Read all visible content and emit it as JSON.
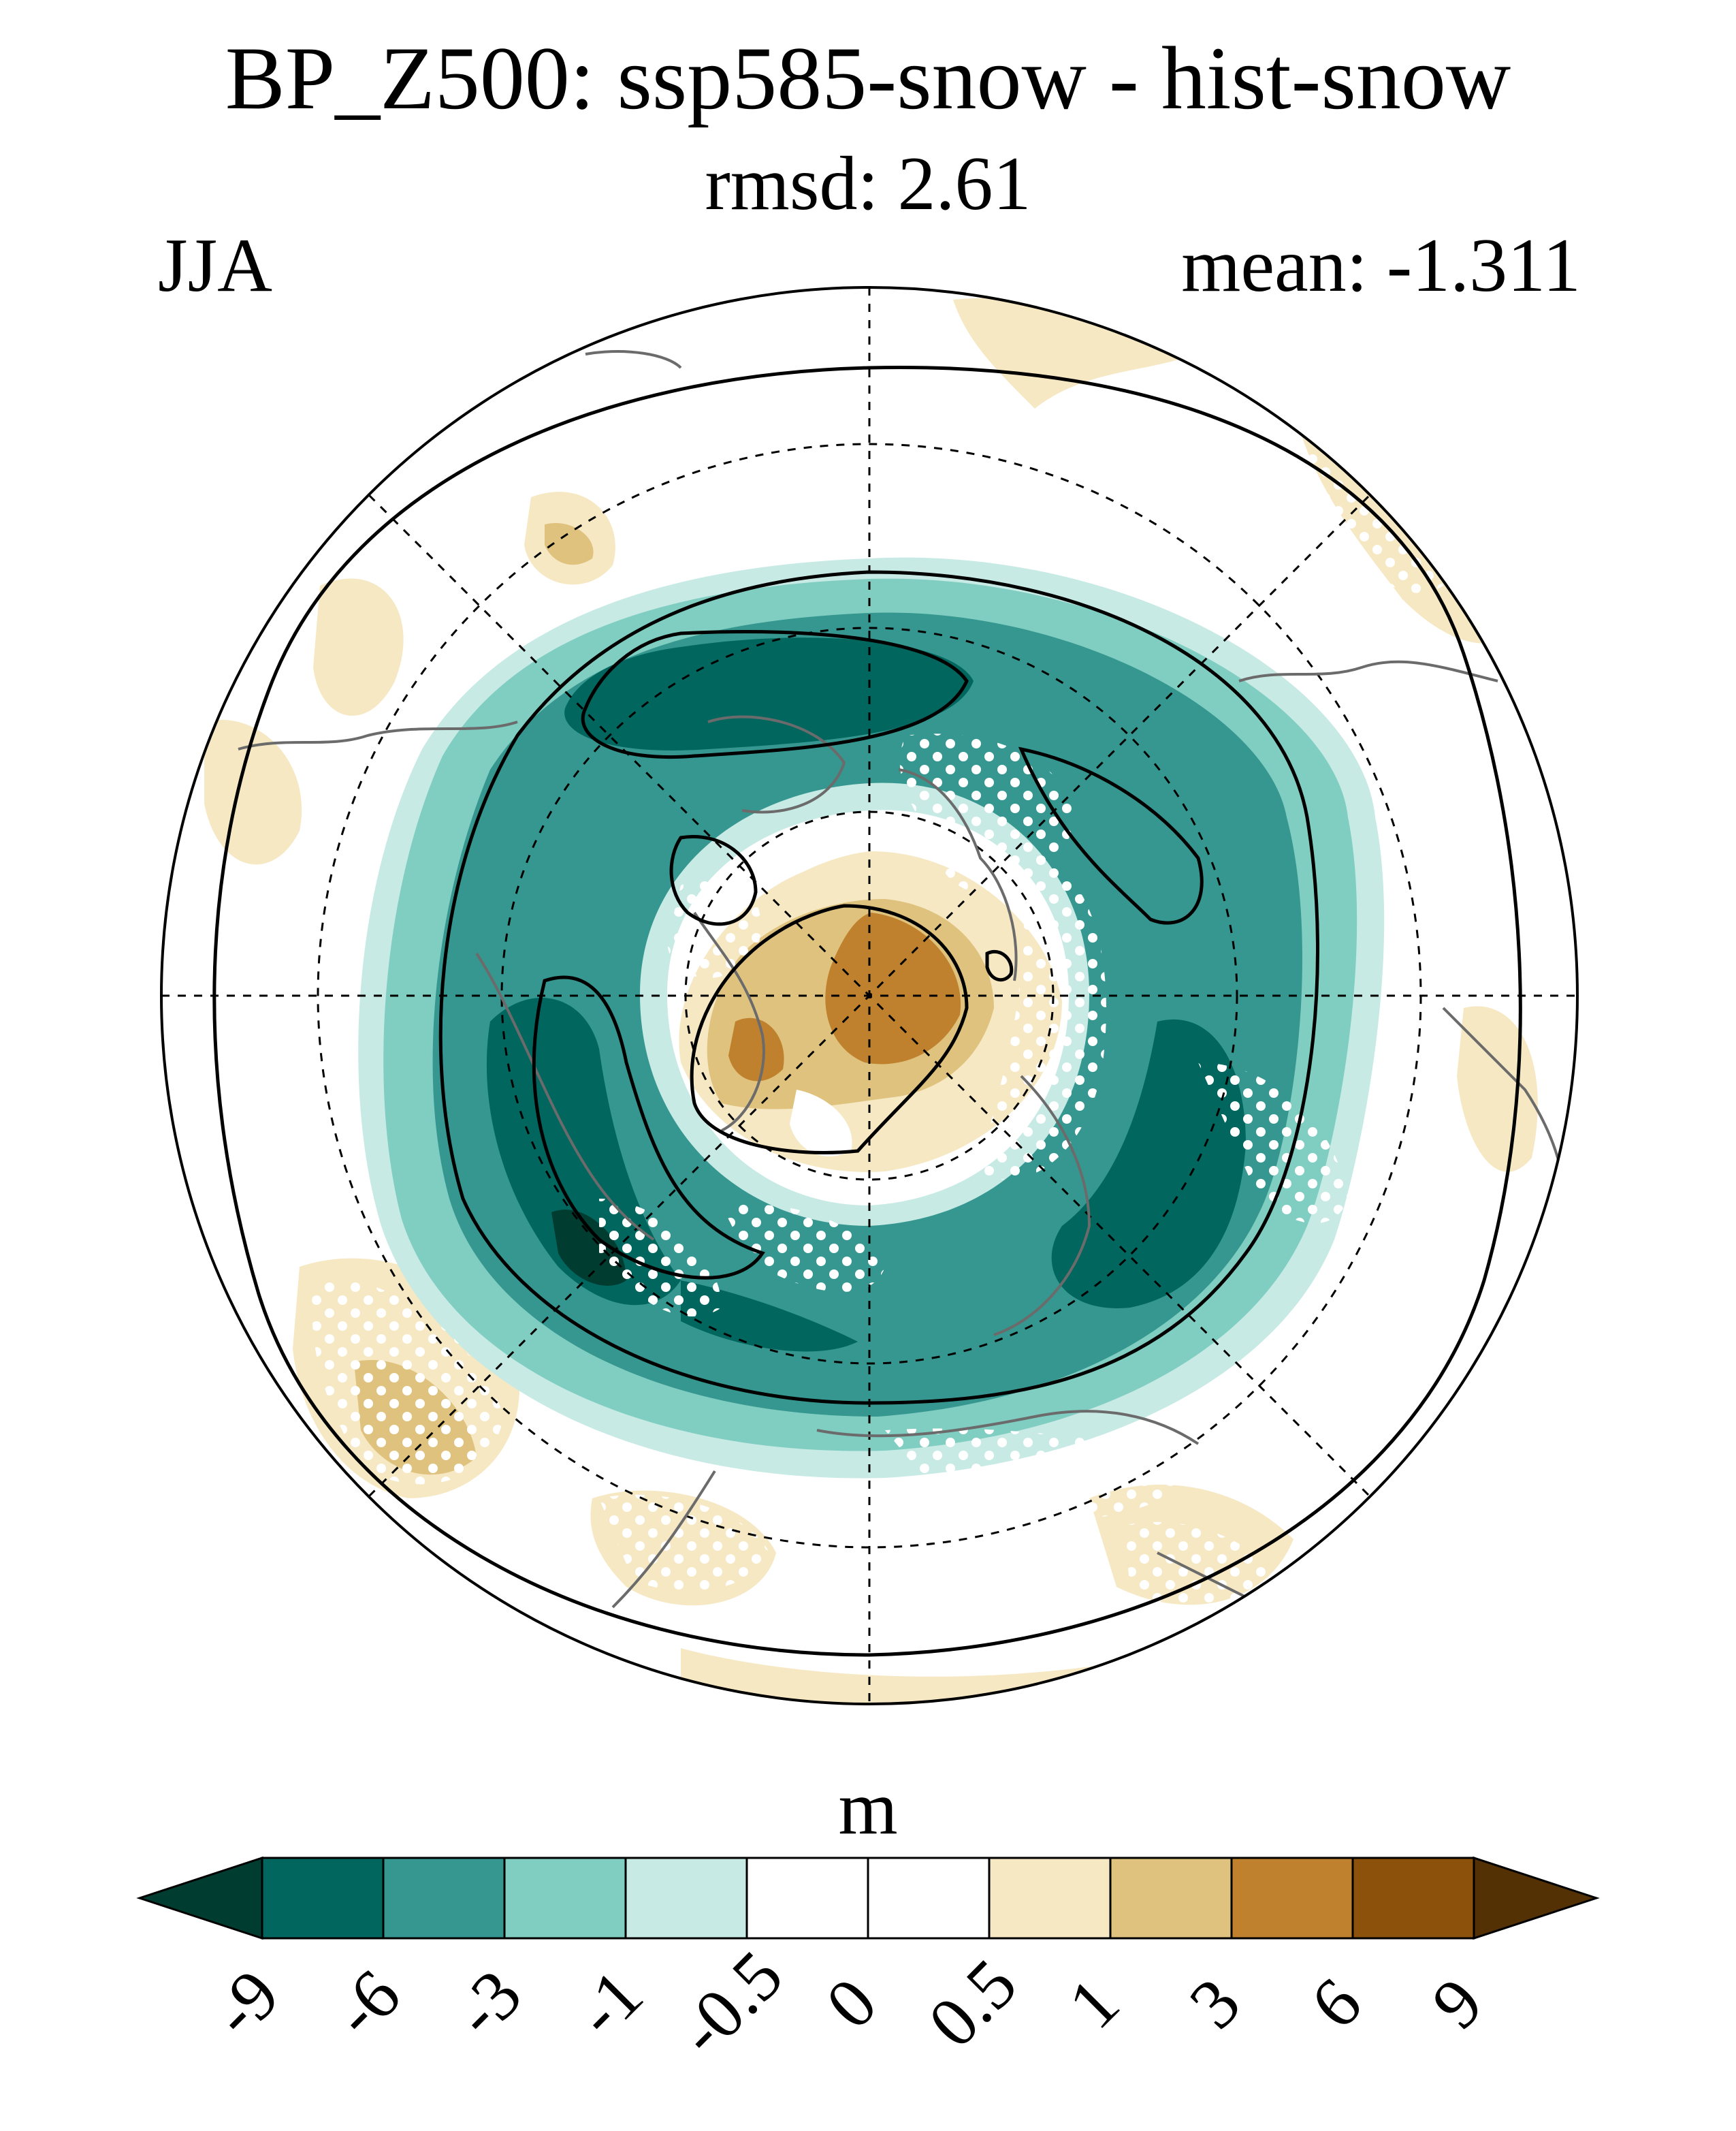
{
  "title": "BP_Z500: ssp585-snow - hist-snow",
  "subtitle": "rmsd: 2.61",
  "season": "JJA",
  "mean_label": "mean: -1.311",
  "colorbar": {
    "units": "m",
    "levels": [
      "-9",
      "-6",
      "-3",
      "-1",
      "-0.5",
      "0",
      "0.5",
      "1",
      "3",
      "6",
      "9"
    ],
    "colors": [
      "#003c30",
      "#01665e",
      "#35978f",
      "#80cdc1",
      "#c7eae5",
      "#ffffff",
      "#ffffff",
      "#f6e8c3",
      "#dfc27d",
      "#bf812d",
      "#8c510a",
      "#543005"
    ]
  },
  "map": {
    "projection": "north-polar-stereographic",
    "variable": "Z500 difference",
    "stippling": "significance"
  }
}
